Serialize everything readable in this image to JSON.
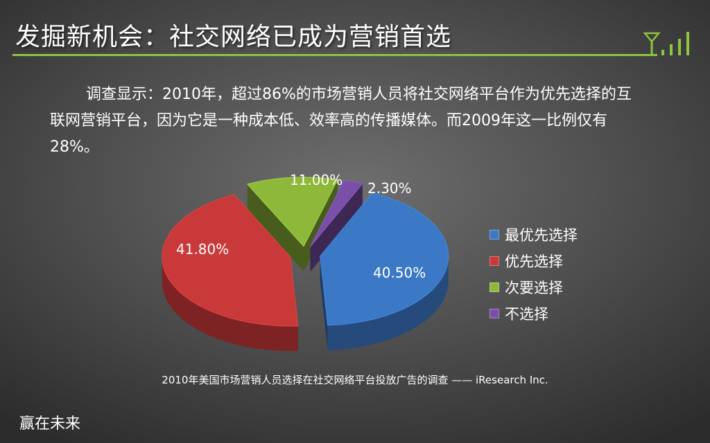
{
  "slide": {
    "title": "发掘新机会：社交网络已成为营销首选",
    "paragraph": "调查显示：2010年，超过86%的市场营销人员将社交网络平台作为优先选择的互联网营销平台，因为它是一种成本低、效率高的传播媒体。而2009年这一比例仅有28%。",
    "source": "2010年美国市场营销人员选择在社交网络平台投放广告的调查 —— iResearch  Inc.",
    "footer": "赢在未来",
    "accent_color": "#8dc63f",
    "icon": "signal-antenna-icon"
  },
  "chart_data": {
    "type": "pie",
    "style": "3d-exploded",
    "categories": [
      "最优先选择",
      "优先选择",
      "次要选择",
      "不选择"
    ],
    "values": [
      40.5,
      41.8,
      11.0,
      2.3
    ],
    "labels": [
      "40.50%",
      "41.80%",
      "11.00%",
      "2.30%"
    ],
    "colors": [
      "#3b78c6",
      "#c9393a",
      "#8db83a",
      "#7a4fa8"
    ],
    "legend_position": "right"
  }
}
